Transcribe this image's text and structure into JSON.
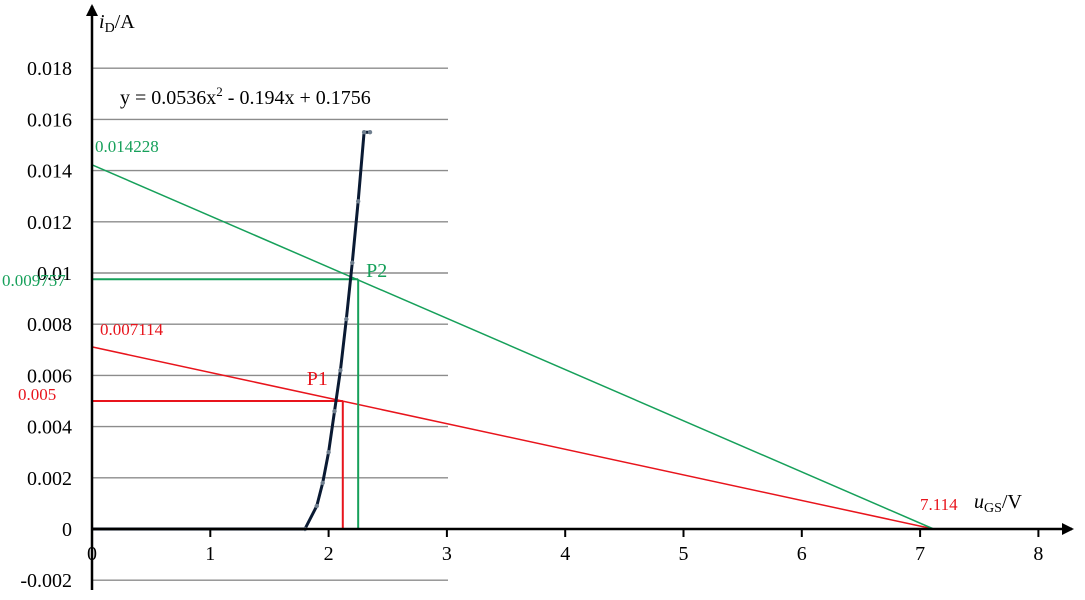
{
  "chart_data": {
    "type": "line",
    "title": "",
    "xlabel": {
      "var": "u",
      "sub": "GS",
      "unit": "/V"
    },
    "ylabel": {
      "var": "i",
      "sub": "D",
      "unit": "/A"
    },
    "xlim": [
      0,
      8
    ],
    "ylim": [
      -0.002,
      0.018
    ],
    "x_ticks": [
      0,
      1,
      2,
      3,
      4,
      5,
      6,
      7,
      8
    ],
    "y_ticks": [
      -0.002,
      0,
      0.002,
      0.004,
      0.006,
      0.008,
      0.01,
      0.012,
      0.014,
      0.016,
      0.018
    ],
    "x_tick_labels": [
      "0",
      "1",
      "2",
      "3",
      "4",
      "5",
      "6",
      "7",
      "8"
    ],
    "y_tick_labels": [
      "-0.002",
      "0",
      "0.002",
      "0.004",
      "0.006",
      "0.008",
      "0.01",
      "0.012",
      "0.014",
      "0.016",
      "0.018"
    ],
    "grid": "horizontal",
    "equation": {
      "base": "y = 0.0536x",
      "exp": "2",
      "rest": " - 0.194x + 0.1756"
    },
    "series": [
      {
        "color": "#0a1a33",
        "x": [
          1.8,
          1.9,
          1.95,
          2.0,
          2.05,
          2.1,
          2.15,
          2.2,
          2.25,
          2.3,
          2.35
        ],
        "y": [
          0.0,
          0.0009,
          0.0018,
          0.003,
          0.0046,
          0.0062,
          0.0082,
          0.0104,
          0.0128,
          0.0155,
          0.0155
        ]
      }
    ],
    "load_lines": [
      {
        "color": "#e8141c",
        "x0": 0,
        "y0": 0.007114,
        "x1": 7.114,
        "y1": 0
      },
      {
        "color": "#16a05a",
        "x0": 0,
        "y0": 0.014228,
        "x1": 7.114,
        "y1": 0
      }
    ],
    "operating_points": [
      {
        "name": "P1",
        "x": 2.12,
        "y": 0.005,
        "color": "#e8141c"
      },
      {
        "name": "P2",
        "x": 2.25,
        "y": 0.009757,
        "color": "#16a05a"
      }
    ],
    "annotations": {
      "red_intercept_y": "0.007114",
      "green_intercept_y": "0.014228",
      "red_point_y": "0.005",
      "green_point_y": "0.009757",
      "x_intercept": "7.114"
    }
  }
}
